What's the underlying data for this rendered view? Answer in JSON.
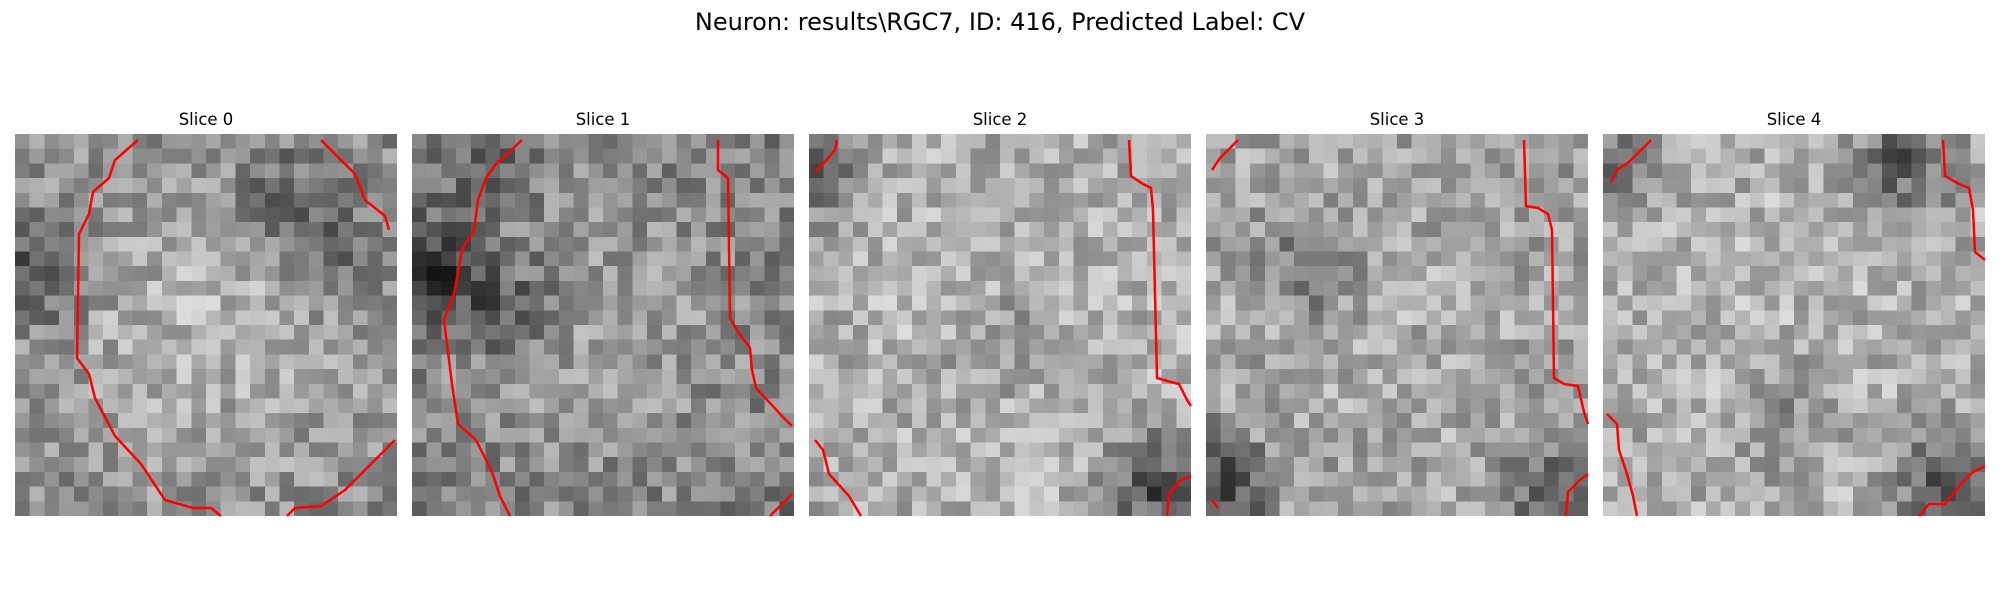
{
  "figure": {
    "title": "Neuron: results\\RGC7, ID: 416, Predicted Label: CV",
    "contour_color": "#ff0000"
  },
  "slices": [
    {
      "title": "Slice 0"
    },
    {
      "title": "Slice 1"
    },
    {
      "title": "Slice 2"
    },
    {
      "title": "Slice 3"
    },
    {
      "title": "Slice 4"
    }
  ]
}
